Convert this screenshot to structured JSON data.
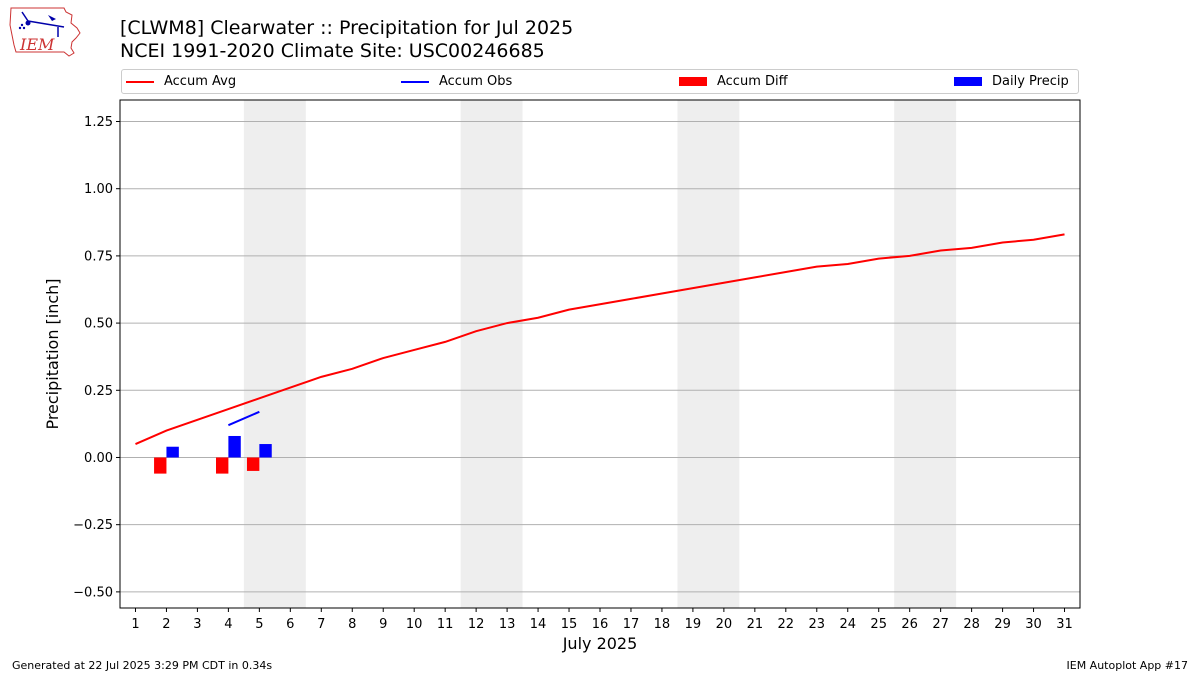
{
  "header": {
    "title": "[CLWM8] Clearwater :: Precipitation for Jul 2025",
    "subtitle": "NCEI 1991-2020 Climate Site: USC00246685"
  },
  "logo": {
    "text": "IEM",
    "icon": "iem-logo-icon"
  },
  "legend": [
    {
      "label": "Accum Avg",
      "kind": "line",
      "color": "#ff0000"
    },
    {
      "label": "Accum Obs",
      "kind": "line",
      "color": "#0000ff"
    },
    {
      "label": "Accum Diff",
      "kind": "box",
      "color": "#ff0000"
    },
    {
      "label": "Daily Precip",
      "kind": "box",
      "color": "#0000ff"
    }
  ],
  "footer": {
    "generated": "Generated at 22 Jul 2025 3:29 PM CDT in 0.34s",
    "app": "IEM Autoplot App #17"
  },
  "chart_data": {
    "type": "line",
    "xlabel": "July 2025",
    "ylabel": "Precipitation [inch]",
    "xlim": [
      0.5,
      31.5
    ],
    "ylim": [
      -0.56,
      1.33
    ],
    "yticks": [
      -0.5,
      -0.25,
      0.0,
      0.25,
      0.5,
      0.75,
      1.0,
      1.25
    ],
    "ytick_labels": [
      "−0.50",
      "−0.25",
      "0.00",
      "0.25",
      "0.50",
      "0.75",
      "1.00",
      "1.25"
    ],
    "xticks": [
      1,
      2,
      3,
      4,
      5,
      6,
      7,
      8,
      9,
      10,
      11,
      12,
      13,
      14,
      15,
      16,
      17,
      18,
      19,
      20,
      21,
      22,
      23,
      24,
      25,
      26,
      27,
      28,
      29,
      30,
      31
    ],
    "grid": "horizontal",
    "weekend_shading": [
      [
        4.5,
        6.5
      ],
      [
        11.5,
        13.5
      ],
      [
        18.5,
        20.5
      ],
      [
        25.5,
        27.5
      ]
    ],
    "weekend_color": "#eeeeee",
    "series": [
      {
        "name": "Accum Avg",
        "type": "line",
        "color": "#ff0000",
        "x": [
          1,
          2,
          3,
          4,
          5,
          6,
          7,
          8,
          9,
          10,
          11,
          12,
          13,
          14,
          15,
          16,
          17,
          18,
          19,
          20,
          21,
          22,
          23,
          24,
          25,
          26,
          27,
          28,
          29,
          30,
          31
        ],
        "values": [
          0.05,
          0.1,
          0.14,
          0.18,
          0.22,
          0.26,
          0.3,
          0.33,
          0.37,
          0.4,
          0.43,
          0.47,
          0.5,
          0.52,
          0.55,
          0.57,
          0.59,
          0.61,
          0.63,
          0.65,
          0.67,
          0.69,
          0.71,
          0.72,
          0.74,
          0.75,
          0.77,
          0.78,
          0.8,
          0.81,
          0.83
        ]
      },
      {
        "name": "Accum Obs",
        "type": "line",
        "color": "#0000ff",
        "x": [
          4,
          5
        ],
        "values": [
          0.12,
          0.17
        ]
      },
      {
        "name": "Accum Diff",
        "type": "bar",
        "color": "#ff0000",
        "x": [
          2,
          4,
          5
        ],
        "values": [
          -0.06,
          -0.06,
          -0.05
        ]
      },
      {
        "name": "Daily Precip",
        "type": "bar",
        "color": "#0000ff",
        "x": [
          2,
          4,
          5
        ],
        "values": [
          0.04,
          0.08,
          0.05
        ]
      }
    ]
  }
}
